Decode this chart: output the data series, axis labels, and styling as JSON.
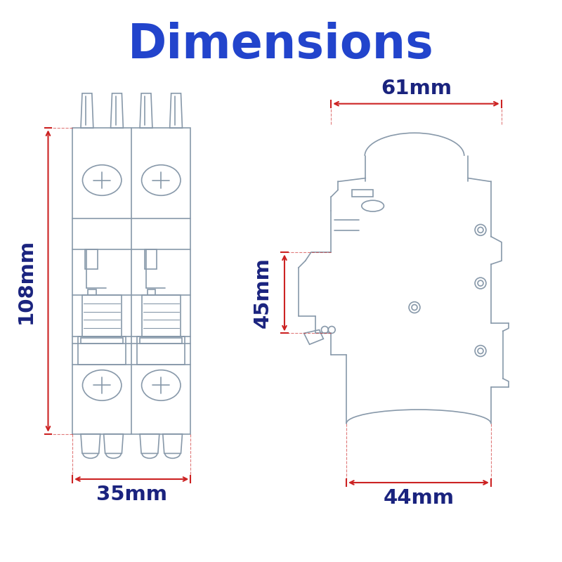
{
  "title": "Dimensions",
  "title_color": "#2244CC",
  "title_fontsize": 48,
  "label_color": "#1A237E",
  "label_fontsize": 21,
  "dim_color": "#CC2222",
  "line_color": "#8899AA",
  "bg_color": "#FFFFFF",
  "front_width_mm": "35mm",
  "front_height_mm": "108mm",
  "side_width_mm": "44mm",
  "side_depth_mm": "61mm",
  "side_handle_mm": "45mm"
}
